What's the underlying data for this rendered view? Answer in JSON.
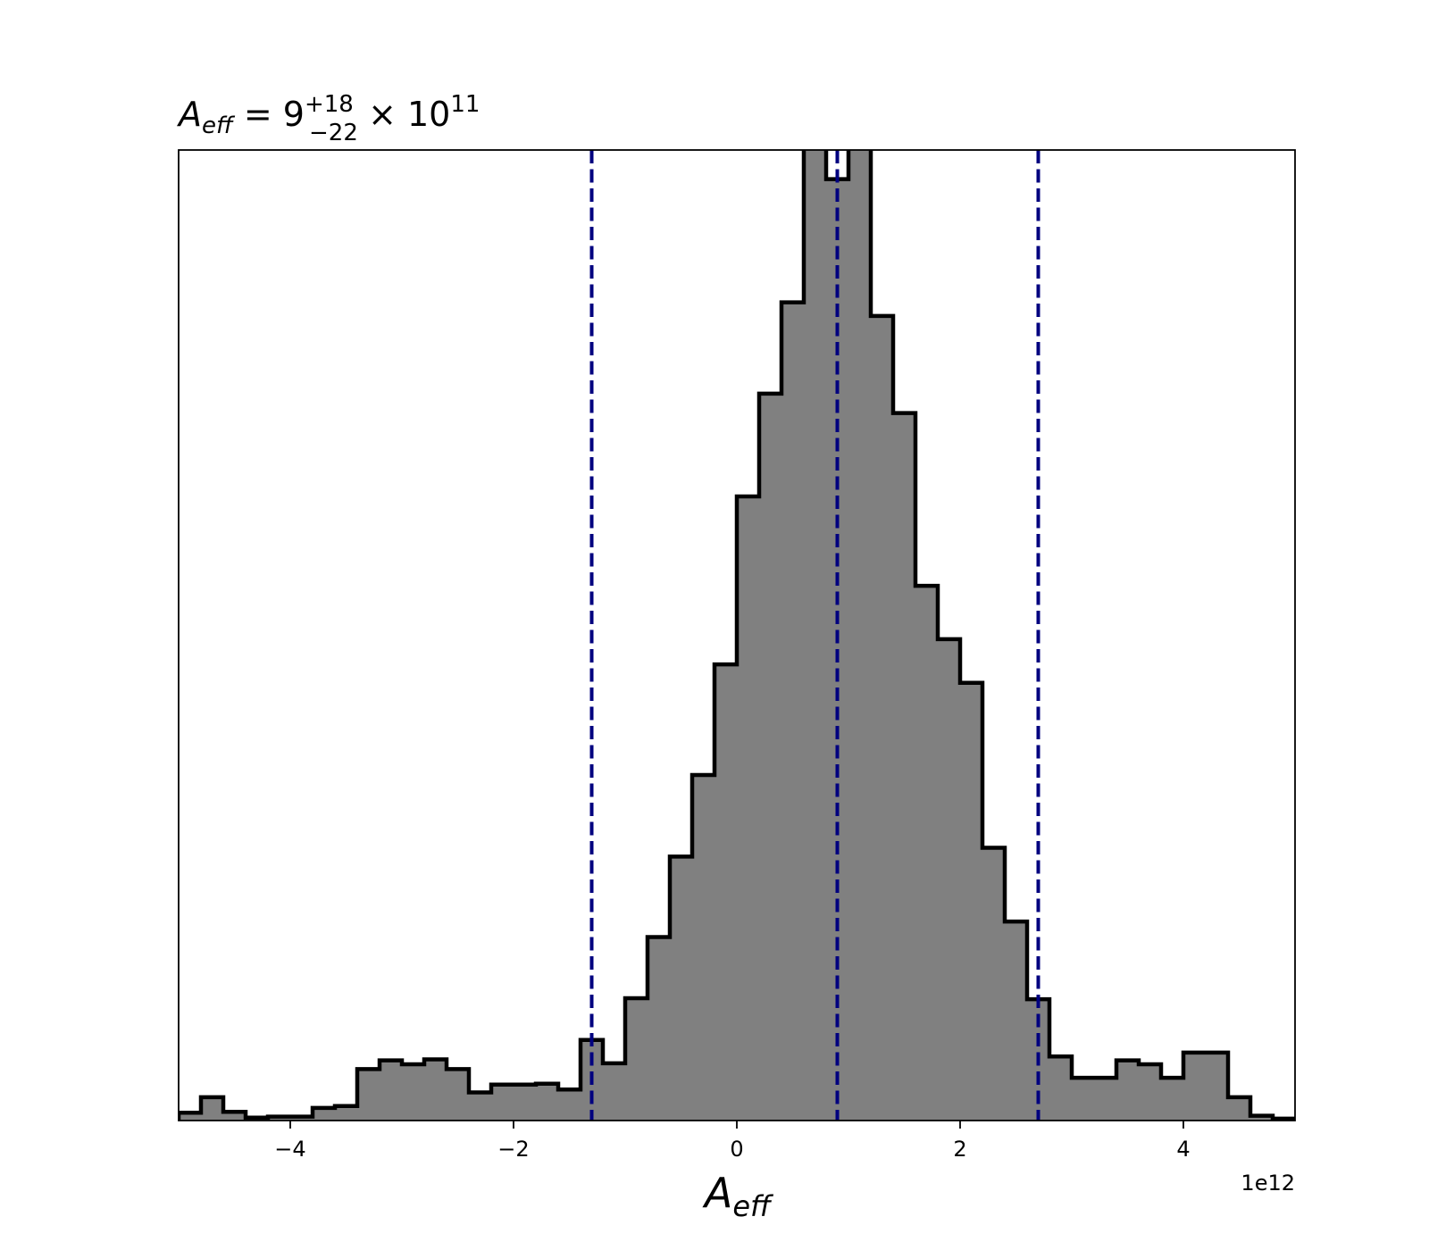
{
  "chart_data": {
    "type": "histogram",
    "title": {
      "symbol": "A",
      "symbol_sub": "eff",
      "equals": " = 9",
      "sup": "+18",
      "sub": "−22",
      "times": " × 10",
      "exp": "11"
    },
    "xlabel": {
      "symbol": "A",
      "symbol_sub": "eff"
    },
    "ylabel": "",
    "x_offset_label": "1e12",
    "xlim": [
      -5.0,
      5.0
    ],
    "ylim": [
      0,
      100
    ],
    "x_tick_values": [
      -4,
      -2,
      0,
      2,
      4
    ],
    "x_tick_labels": [
      "−4",
      "−2",
      "0",
      "2",
      "4"
    ],
    "y_ticks_shown": false,
    "fill_color": "#808080",
    "edge_color": "#000000",
    "bin_edges": [
      -5.0,
      -4.8,
      -4.6,
      -4.4,
      -4.2,
      -4.0,
      -3.8,
      -3.6,
      -3.4,
      -3.2,
      -3.0,
      -2.8,
      -2.6,
      -2.4,
      -2.2,
      -2.0,
      -1.8,
      -1.6,
      -1.4,
      -1.2,
      -1.0,
      -0.8,
      -0.6,
      -0.4,
      -0.2,
      0.0,
      0.2,
      0.4,
      0.6,
      0.8,
      1.0,
      1.2,
      1.4,
      1.6,
      1.8,
      2.0,
      2.2,
      2.4,
      2.6,
      2.8,
      3.0,
      3.2,
      3.4,
      3.6,
      3.8,
      4.0,
      4.2,
      4.4,
      4.6,
      4.8,
      5.0
    ],
    "counts": [
      0.8,
      2.4,
      0.9,
      0.3,
      0.4,
      0.4,
      1.3,
      1.5,
      5.3,
      6.2,
      5.8,
      6.3,
      5.3,
      2.9,
      3.7,
      3.7,
      3.8,
      3.2,
      8.3,
      5.9,
      12.6,
      18.9,
      27.2,
      35.6,
      47.0,
      64.3,
      74.9,
      84.3,
      103.0,
      97.0,
      103.0,
      82.9,
      72.9,
      55.1,
      49.6,
      45.1,
      28.1,
      20.5,
      12.5,
      6.6,
      4.4,
      4.4,
      6.2,
      5.8,
      4.4,
      7.0,
      7.0,
      2.4,
      0.5,
      0.2
    ],
    "vlines": [
      {
        "x": -1.3,
        "color": "#00007f",
        "style": "dashed"
      },
      {
        "x": 0.9,
        "color": "#00007f",
        "style": "dashed"
      },
      {
        "x": 2.7,
        "color": "#00007f",
        "style": "dashed"
      }
    ]
  }
}
